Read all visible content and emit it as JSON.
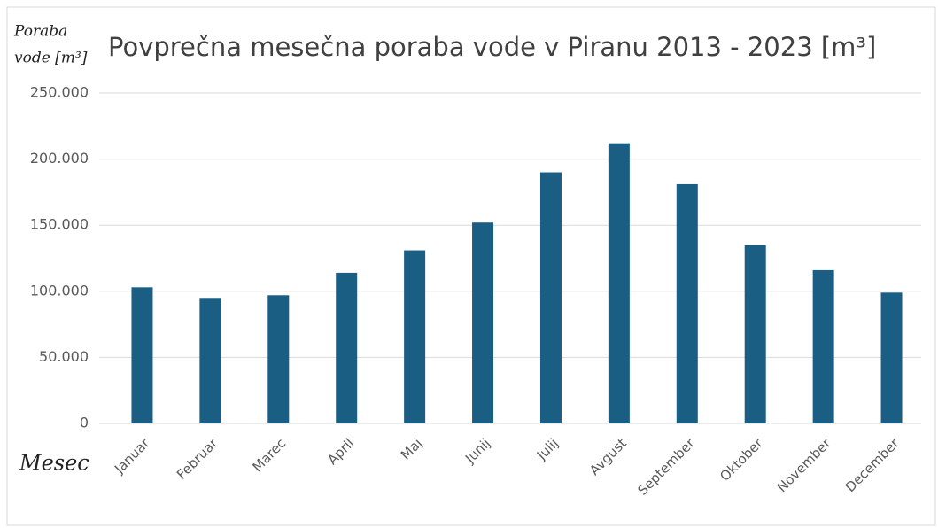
{
  "chart_data": {
    "type": "bar",
    "title": "Povprečna mesečna poraba vode v Piranu 2013 - 2023 [m³]",
    "y_label": [
      "Poraba",
      "vode [m³]"
    ],
    "x_label": "Mesec",
    "categories": [
      "Januar",
      "Februar",
      "Marec",
      "April",
      "Maj",
      "Junij",
      "Julij",
      "Avgust",
      "September",
      "Oktober",
      "November",
      "December"
    ],
    "values": [
      103000,
      95000,
      97000,
      114000,
      131000,
      152000,
      190000,
      212000,
      181000,
      135000,
      116000,
      99000
    ],
    "color": "#1b5e84",
    "ylim": [
      0,
      250000
    ],
    "yticks": [
      0,
      {
        "value": 50000,
        "label": "50.000"
      },
      {
        "value": 100000,
        "label": "100.000"
      },
      {
        "value": 150000,
        "label": "150.000"
      },
      {
        "value": 200000,
        "label": "200.000"
      },
      {
        "value": 250000,
        "label": "250.000"
      }
    ],
    "grid": true
  }
}
